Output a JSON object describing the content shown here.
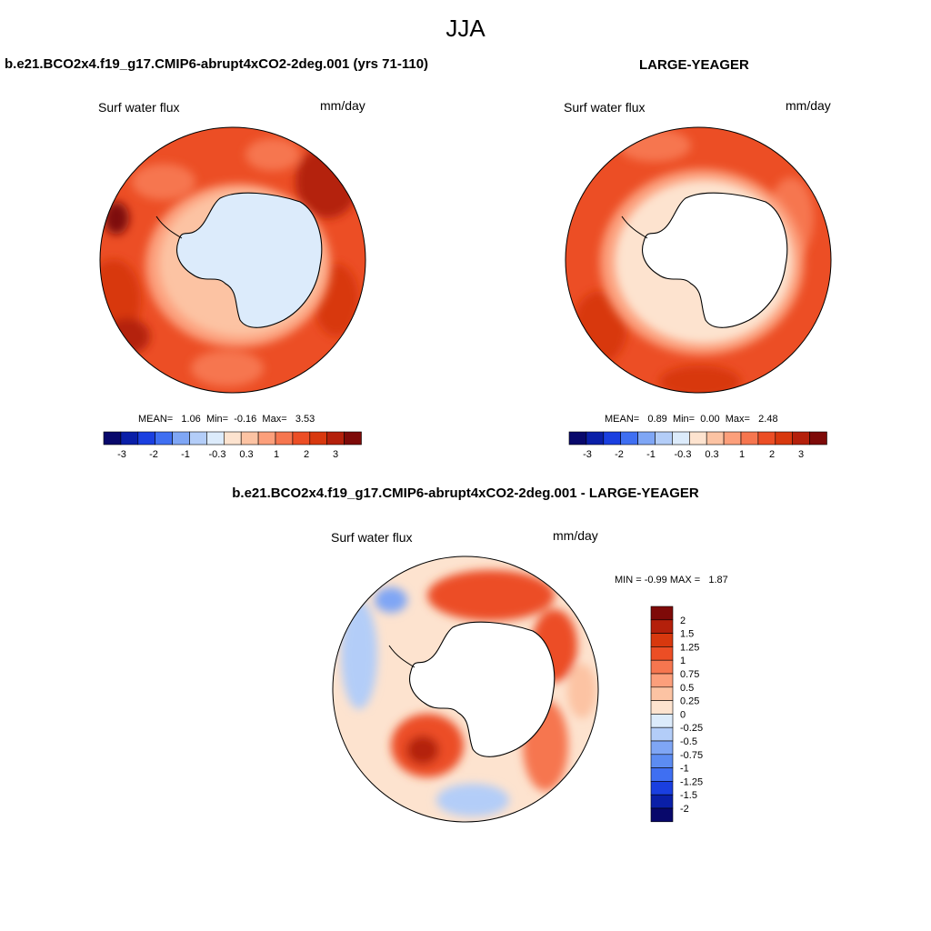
{
  "figure": {
    "title": "JJA"
  },
  "panels": [
    {
      "title": "b.e21.BCO2x4.f19_g17.CMIP6-abrupt4xCO2-2deg.001 (yrs 71-110)",
      "left_label": "Surf water flux",
      "right_label": "mm/day",
      "stats": {
        "mean": "1.06",
        "min": "-0.16",
        "max": "3.53"
      },
      "stats_labels": {
        "mean": "MEAN=",
        "min": "Min=",
        "max": "Max="
      }
    },
    {
      "title": "LARGE-YEAGER",
      "left_label": "Surf water flux",
      "right_label": "mm/day",
      "stats": {
        "mean": "0.89",
        "min": "0.00",
        "max": "2.48"
      },
      "stats_labels": {
        "mean": "MEAN=",
        "min": "Min=",
        "max": "Max="
      }
    },
    {
      "title": "b.e21.BCO2x4.f19_g17.CMIP6-abrupt4xCO2-2deg.001 - LARGE-YEAGER",
      "left_label": "Surf water flux",
      "right_label": "mm/day",
      "stats": {
        "min": "-0.99",
        "max": "1.87"
      },
      "stats_labels": {
        "min": "MIN =",
        "max": "MAX ="
      }
    }
  ],
  "colorbars": {
    "horizontal": {
      "colors": [
        "#08086b",
        "#0a1fa8",
        "#1a3fe0",
        "#3f6ff2",
        "#7fa6f5",
        "#b3cdf8",
        "#dcebfb",
        "#fde3cf",
        "#fcc3a3",
        "#fc9f7b",
        "#f6764f",
        "#ec4e25",
        "#d8380e",
        "#b4200b",
        "#7e0a08"
      ],
      "labels": [
        "-3",
        "-2",
        "-1",
        "-0.3",
        "0.3",
        "1",
        "2",
        "3"
      ]
    },
    "vertical": {
      "colors": [
        "#7e0a08",
        "#b4200b",
        "#d8380e",
        "#ec4e25",
        "#f6764f",
        "#fc9f7b",
        "#fcc3a3",
        "#fde3cf",
        "#dcebfb",
        "#b3cdf8",
        "#7fa6f5",
        "#5c8cf2",
        "#3f6ff2",
        "#1a3fe0",
        "#0a1fa8",
        "#08086b"
      ],
      "labels": [
        "2",
        "1.5",
        "1.25",
        "1",
        "0.75",
        "0.5",
        "0.25",
        "0",
        "-0.25",
        "-0.5",
        "-0.75",
        "-1",
        "-1.25",
        "-1.5",
        "-2"
      ]
    }
  },
  "map_colors": {
    "ocean_warm": "#ec4e25",
    "ocean_dark": "#b4200b",
    "ocean_mid": "#f6764f",
    "ocean_light": "#fcc3a3",
    "ocean_pale": "#fde3cf",
    "land_panel1": "#dcebfb",
    "land_white": "#ffffff",
    "neg_light": "#b3cdf8",
    "neg_mid": "#7fa6f5"
  }
}
